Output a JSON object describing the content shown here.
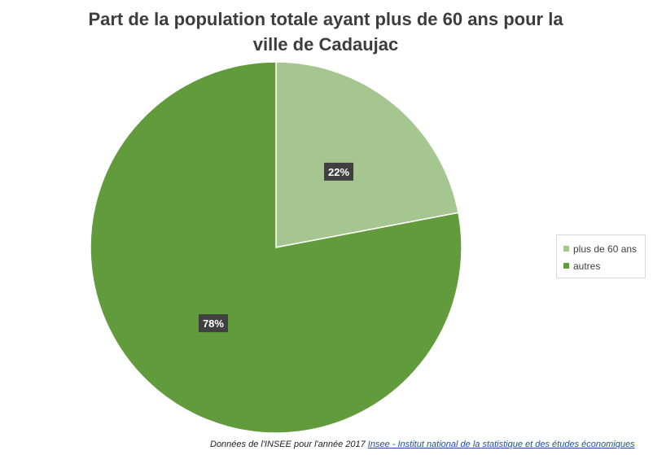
{
  "chart_data": {
    "type": "pie",
    "title_line1": "Part de la population totale ayant plus de 60 ans pour la",
    "title_line2": "ville de Cadaujac",
    "categories": [
      "plus de 60 ans",
      "autres"
    ],
    "values": [
      22,
      78
    ],
    "data_labels": [
      "22%",
      "78%"
    ],
    "colors": [
      "#a5c690",
      "#629b3c"
    ],
    "legend_position": "right"
  },
  "footer": {
    "source_text": "Données de l'INSEE pour l'année 2017",
    "source_link": "Insee - Institut national de la statistique et des études économiques"
  }
}
